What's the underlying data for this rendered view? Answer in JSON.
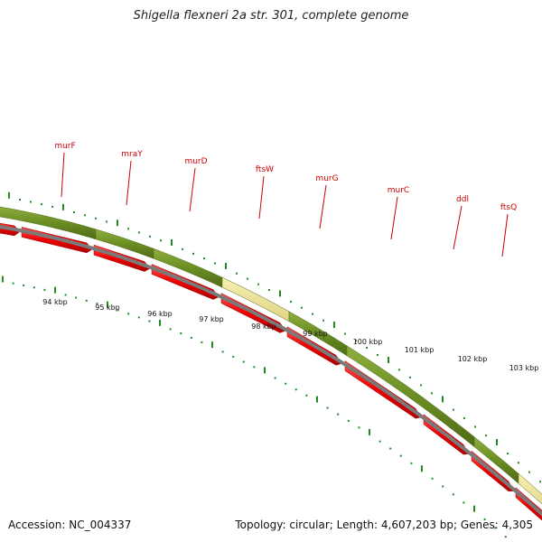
{
  "title": "Shigella flexneri 2a str. 301, complete genome",
  "footer": {
    "accession": "Accession: NC_004337",
    "summary": "Topology: circular; Length: 4,607,203 bp; Genes: 4,305"
  },
  "colors": {
    "gene_green": "#6b8e23",
    "gene_pale": "#f0e68c",
    "cds_red": "#ee0000",
    "label_red": "#cc0000",
    "tick_green": "#228b22",
    "backbone": "#808080"
  },
  "genes": [
    {
      "name": "murF"
    },
    {
      "name": "mraY"
    },
    {
      "name": "murD"
    },
    {
      "name": "ftsW"
    },
    {
      "name": "murG"
    },
    {
      "name": "murC"
    },
    {
      "name": "ddl"
    },
    {
      "name": "ftsQ"
    }
  ],
  "kbp_labels": [
    "94 kbp",
    "95 kbp",
    "96 kbp",
    "97 kbp",
    "98 kbp",
    "99 kbp",
    "100 kbp",
    "101 kbp",
    "102 kbp",
    "103 kbp"
  ]
}
